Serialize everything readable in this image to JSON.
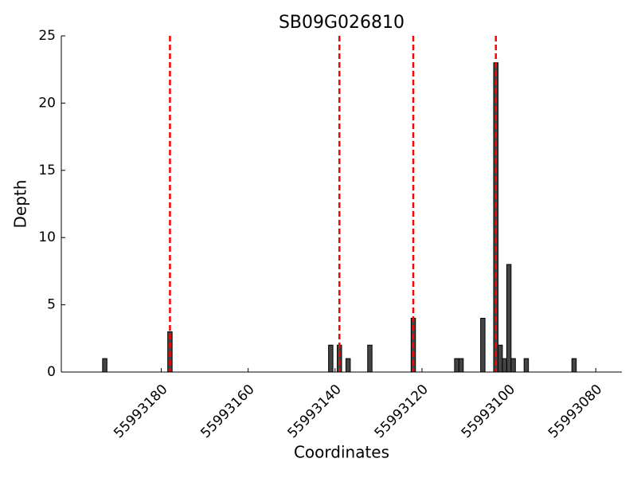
{
  "chart_data": {
    "type": "bar",
    "title": "SB09G026810",
    "x_label": "Coordinates",
    "y_label": "Depth",
    "x": [
      55993193,
      55993178,
      55993141,
      55993139,
      55993137,
      55993132,
      55993122,
      55993112,
      55993111,
      55993106,
      55993103,
      55993102,
      55993101,
      55993100,
      55993099,
      55993096,
      55993085
    ],
    "values": [
      1,
      3,
      2,
      2,
      1,
      2,
      4,
      1,
      1,
      4,
      23,
      2,
      1,
      8,
      1,
      1,
      1
    ],
    "color": "#444444",
    "edge_color": "#000000",
    "xlim": [
      55993203,
      55993074
    ],
    "xticks": [
      55993180,
      55993160,
      55993140,
      55993120,
      55993100,
      55993080
    ],
    "ylim": [
      0,
      25
    ],
    "yticks": [
      0,
      5,
      10,
      15,
      20,
      25
    ],
    "vlines": {
      "values": [
        55993178,
        55993139,
        55993122,
        55993103
      ],
      "color": "#ff0000"
    }
  }
}
